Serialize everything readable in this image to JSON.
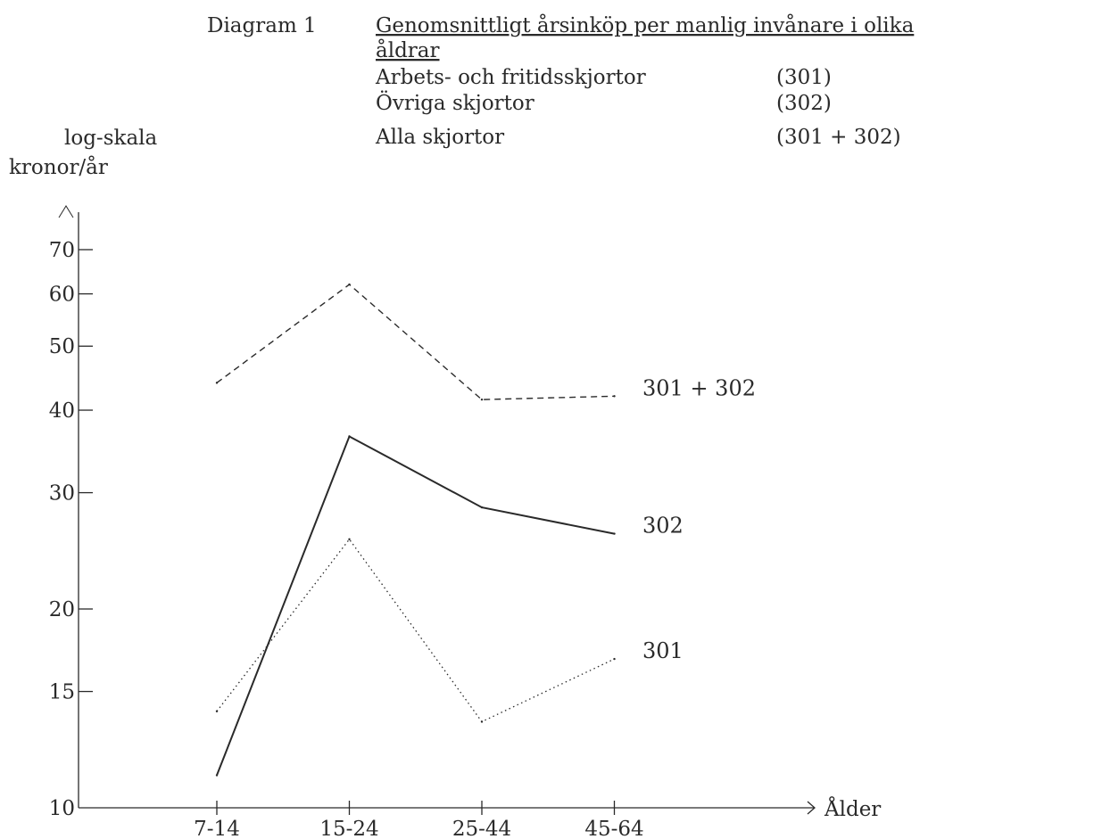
{
  "header": {
    "label": "Diagram 1",
    "title_line1": "Genomsnittligt årsinköp per manlig invånare i olika",
    "title_line2": "åldrar",
    "rows": [
      {
        "name": "Arbets- och fritidsskjortor",
        "code": "(301)"
      },
      {
        "name": "Övriga skjortor",
        "code": "(302)"
      },
      {
        "name": "Alla skjortor",
        "code": "(301 + 302)"
      }
    ]
  },
  "colors": {
    "ink": "#2a2a2a",
    "paper": "#ffffff"
  },
  "chart_data": {
    "type": "line",
    "ylabel_line1": "log-skala",
    "ylabel_line2": "kronor/år",
    "xlabel": "Ålder",
    "yscale": "log",
    "ylim": [
      10,
      70
    ],
    "yticks": [
      10,
      15,
      20,
      30,
      40,
      50,
      60,
      70
    ],
    "ytick_labels": [
      "10",
      "15",
      "20",
      "30",
      "40",
      "50",
      "60",
      "70"
    ],
    "categories": [
      "7-14",
      "15-24",
      "25-44",
      "45-64"
    ],
    "grid": false,
    "legend": "labels at line ends",
    "series": [
      {
        "name": "301 + 302",
        "style": "dashed",
        "values": [
          44,
          62,
          41.5,
          42
        ]
      },
      {
        "name": "302",
        "style": "solid",
        "values": [
          11.2,
          36.5,
          28.5,
          26
        ]
      },
      {
        "name": "301",
        "style": "dotted",
        "values": [
          14,
          25.5,
          13.5,
          16.8
        ]
      }
    ]
  }
}
